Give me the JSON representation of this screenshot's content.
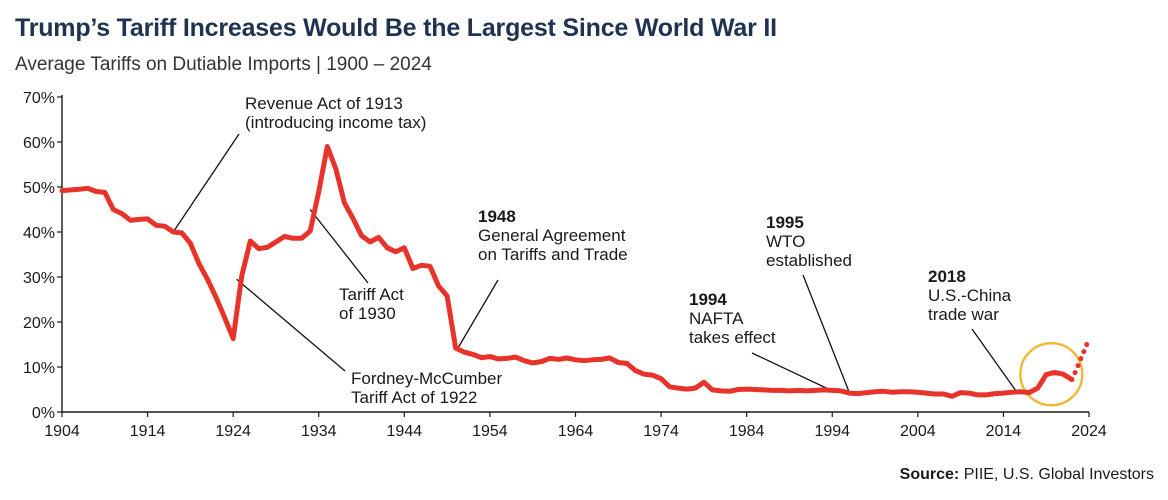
{
  "header": {
    "title": "Trump’s Tariff Increases Would Be the Largest Since World War II",
    "subtitle": "Average Tariffs on Dutiable Imports | 1900 – 2024"
  },
  "source": {
    "label": "Source:",
    "text": " PIIE, U.S. Global Investors"
  },
  "colors": {
    "line": "#e8332a",
    "highlight_circle": "#f2b632",
    "title": "#1f3350",
    "axis": "#1a1a1a"
  },
  "chart_data": {
    "type": "line",
    "title": "Trump’s Tariff Increases Would Be the Largest Since World War II",
    "subtitle": "Average Tariffs on Dutiable Imports | 1900 – 2024",
    "xlabel": "",
    "ylabel": "",
    "xlim": [
      1904,
      2024
    ],
    "ylim": [
      0,
      70
    ],
    "x_ticks": [
      "1904",
      "1914",
      "1924",
      "1934",
      "1944",
      "1954",
      "1964",
      "1974",
      "1984",
      "1994",
      "2004",
      "2014",
      "2024"
    ],
    "y_ticks": [
      "0%",
      "10%",
      "20%",
      "30%",
      "40%",
      "50%",
      "60%",
      "70%"
    ],
    "grid": false,
    "series": [
      {
        "style": "solid",
        "x": [
          1904,
          1906,
          1907,
          1908,
          1909,
          1910,
          1911,
          1912,
          1913,
          1914,
          1915,
          1916,
          1917,
          1918,
          1919,
          1920,
          1921,
          1922,
          1923,
          1924,
          1925,
          1926,
          1927,
          1928,
          1929,
          1930,
          1931,
          1932,
          1933,
          1934,
          1935,
          1936,
          1937,
          1938,
          1939,
          1940,
          1941,
          1942,
          1943,
          1944,
          1945,
          1946,
          1947,
          1948,
          1949,
          1950,
          1951,
          1952,
          1953,
          1954,
          1955,
          1956,
          1957,
          1958,
          1959,
          1960,
          1961,
          1962,
          1963,
          1964,
          1965,
          1966,
          1967,
          1968,
          1969,
          1970,
          1971,
          1972,
          1973,
          1974,
          1975,
          1976,
          1977,
          1978,
          1979,
          1980,
          1981,
          1982,
          1983,
          1984,
          1985,
          1986,
          1987,
          1988,
          1989,
          1990,
          1991,
          1992,
          1993,
          1994,
          1995,
          1996,
          1997,
          1998,
          1999,
          2000,
          2001,
          2002,
          2003,
          2004,
          2005,
          2006,
          2007,
          2008,
          2009,
          2010,
          2011,
          2012,
          2013,
          2014,
          2015,
          2016,
          2017,
          2018,
          2019,
          2020,
          2021,
          2022
        ],
        "y": [
          49.2,
          49.5,
          49.7,
          49.0,
          48.8,
          45.0,
          44.1,
          42.6,
          42.8,
          42.9,
          41.5,
          41.3,
          40.0,
          39.8,
          37.5,
          33.0,
          29.5,
          25.5,
          21.0,
          16.3,
          30.2,
          38.0,
          36.3,
          36.6,
          37.8,
          39.0,
          38.6,
          38.6,
          40.2,
          49.0,
          59.0,
          54.0,
          46.5,
          43.0,
          39.2,
          37.8,
          38.8,
          36.5,
          35.6,
          36.5,
          31.9,
          32.6,
          32.4,
          28.0,
          25.8,
          14.2,
          13.3,
          12.8,
          12.1,
          12.3,
          11.8,
          11.9,
          12.2,
          11.4,
          10.9,
          11.2,
          11.9,
          11.7,
          12.0,
          11.6,
          11.4,
          11.6,
          11.7,
          12.0,
          11.0,
          10.8,
          9.2,
          8.4,
          8.2,
          7.4,
          5.6,
          5.3,
          5.1,
          5.3,
          6.6,
          4.9,
          4.7,
          4.6,
          5.0,
          5.1,
          5.0,
          4.9,
          4.8,
          4.8,
          4.7,
          4.8,
          4.7,
          4.8,
          4.9,
          4.8,
          4.7,
          4.2,
          4.1,
          4.3,
          4.5,
          4.6,
          4.4,
          4.5,
          4.5,
          4.4,
          4.2,
          4.0,
          4.0,
          3.5,
          4.3,
          4.2,
          3.8,
          3.8,
          4.1,
          4.2,
          4.4,
          4.5,
          4.3,
          5.3,
          8.3,
          8.8,
          8.4,
          7.2
        ]
      },
      {
        "style": "dotted",
        "x": [
          2022,
          2022.5,
          2023,
          2023.5,
          2024
        ],
        "y": [
          7.2,
          9.3,
          11.6,
          13.9,
          16.2
        ]
      }
    ],
    "annotations": [
      {
        "lines": [
          "Revenue Act of 1913",
          "(introducing income tax)"
        ],
        "bold_first": false,
        "point": [
          1917,
          40.0
        ]
      },
      {
        "lines": [
          "Tariff Act",
          "of 1930"
        ],
        "bold_first": false,
        "point": [
          1933,
          45.0
        ]
      },
      {
        "lines": [
          "Fordney-McCumber",
          "Tariff Act of 1922"
        ],
        "bold_first": false,
        "point": [
          1924.4,
          29.5
        ]
      },
      {
        "lines": [
          "1948",
          "General Agreement",
          "on Tariffs and Trade"
        ],
        "bold_first": true,
        "point": [
          1950.2,
          14.0
        ]
      },
      {
        "lines": [
          "1994",
          "NAFTA",
          "takes effect"
        ],
        "bold_first": true,
        "point": [
          1994,
          4.7
        ]
      },
      {
        "lines": [
          "1995",
          "WTO",
          "established"
        ],
        "bold_first": true,
        "point": [
          1996,
          4.3
        ]
      },
      {
        "lines": [
          "2018",
          "U.S.-China",
          "trade war"
        ],
        "bold_first": true,
        "point": [
          2015.5,
          4.6
        ]
      }
    ]
  }
}
